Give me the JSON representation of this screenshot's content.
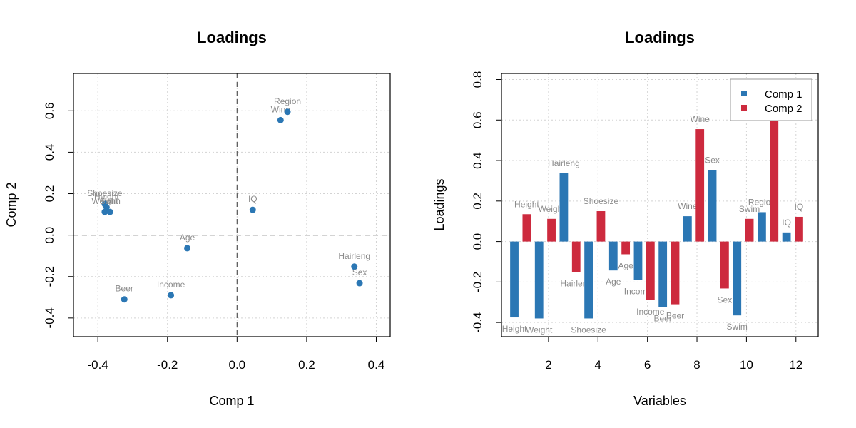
{
  "chart_data": [
    {
      "type": "scatter",
      "title": "Loadings",
      "xlabel": "Comp 1",
      "ylabel": "Comp 2",
      "xlim": [
        -0.47,
        0.44
      ],
      "ylim": [
        -0.49,
        0.78
      ],
      "xticks": [
        "-0.4",
        "-0.2",
        "0.0",
        "0.2",
        "0.4"
      ],
      "yticks": [
        "-0.4",
        "-0.2",
        "0.0",
        "0.2",
        "0.4",
        "0.6"
      ],
      "reference_lines": {
        "x": 0,
        "y": 0
      },
      "grid": true,
      "color": "#2b77b4",
      "points": [
        {
          "label": "Height",
          "x": -0.375,
          "y": 0.135
        },
        {
          "label": "Weight",
          "x": -0.38,
          "y": 0.112
        },
        {
          "label": "Hairleng",
          "x": 0.337,
          "y": -0.152
        },
        {
          "label": "Shoesize",
          "x": -0.38,
          "y": 0.15
        },
        {
          "label": "Age",
          "x": -0.143,
          "y": -0.063
        },
        {
          "label": "Income",
          "x": -0.19,
          "y": -0.29
        },
        {
          "label": "Beer",
          "x": -0.324,
          "y": -0.31
        },
        {
          "label": "Wine",
          "x": 0.125,
          "y": 0.555
        },
        {
          "label": "Sex",
          "x": 0.352,
          "y": -0.232
        },
        {
          "label": "Swim",
          "x": -0.365,
          "y": 0.112
        },
        {
          "label": "Region",
          "x": 0.145,
          "y": 0.595
        },
        {
          "label": "IQ",
          "x": 0.045,
          "y": 0.122
        }
      ]
    },
    {
      "type": "bar",
      "title": "Loadings",
      "xlabel": "Variables",
      "ylabel": "Loadings",
      "xlim": [
        0.1,
        12.9
      ],
      "ylim": [
        -0.47,
        0.83
      ],
      "xticks": [
        "2",
        "4",
        "6",
        "8",
        "10",
        "12"
      ],
      "yticks": [
        "-0.4",
        "-0.2",
        "0.0",
        "0.2",
        "0.4",
        "0.6",
        "0.8"
      ],
      "grid": true,
      "legend_position": "top-right",
      "categories": [
        "Height",
        "Weight",
        "Hairleng",
        "Shoesize",
        "Age",
        "Income",
        "Beer",
        "Wine",
        "Sex",
        "Swim",
        "Region",
        "IQ"
      ],
      "series": [
        {
          "name": "Comp 1",
          "color": "#2b77b4",
          "values": [
            -0.375,
            -0.38,
            0.337,
            -0.38,
            -0.143,
            -0.19,
            -0.324,
            0.125,
            0.352,
            -0.365,
            0.145,
            0.045
          ]
        },
        {
          "name": "Comp 2",
          "color": "#cd2a3e",
          "values": [
            0.135,
            0.112,
            -0.152,
            0.15,
            -0.063,
            -0.29,
            -0.31,
            0.555,
            -0.232,
            0.112,
            0.595,
            0.122
          ]
        }
      ]
    }
  ]
}
